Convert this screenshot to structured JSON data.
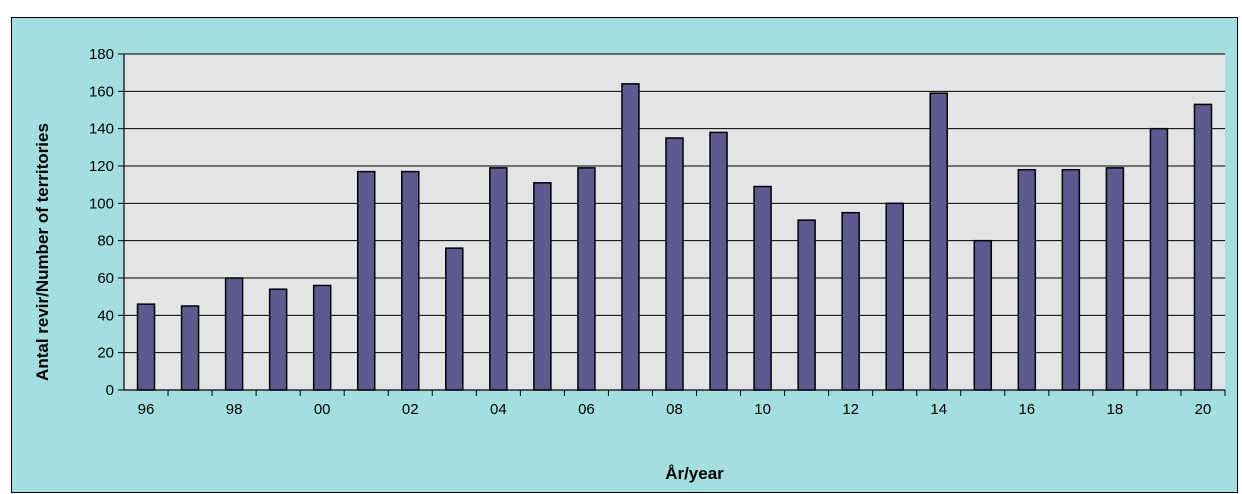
{
  "chart_data": {
    "type": "bar",
    "categories": [
      "96",
      "97",
      "98",
      "99",
      "00",
      "01",
      "02",
      "03",
      "04",
      "05",
      "06",
      "07",
      "08",
      "09",
      "10",
      "11",
      "12",
      "13",
      "14",
      "15",
      "16",
      "17",
      "18",
      "19",
      "20"
    ],
    "x_tick_labels": [
      "96",
      "",
      "98",
      "",
      "00",
      "",
      "02",
      "",
      "04",
      "",
      "06",
      "",
      "08",
      "",
      "10",
      "",
      "12",
      "",
      "14",
      "",
      "16",
      "",
      "18",
      "",
      "20"
    ],
    "values": [
      46,
      45,
      60,
      54,
      56,
      117,
      117,
      76,
      119,
      111,
      119,
      164,
      135,
      138,
      109,
      91,
      95,
      100,
      159,
      80,
      118,
      118,
      119,
      140,
      153
    ],
    "xlabel": "År/year",
    "ylabel": "Antal revir/Number of territories",
    "ylim": [
      0,
      180
    ],
    "yticks": [
      0,
      20,
      40,
      60,
      80,
      100,
      120,
      140,
      160,
      180
    ],
    "grid": true,
    "colors": {
      "bar": "#5d5a8f",
      "plot_area": "#e4e4e4",
      "background": "#a3dfe0"
    }
  }
}
